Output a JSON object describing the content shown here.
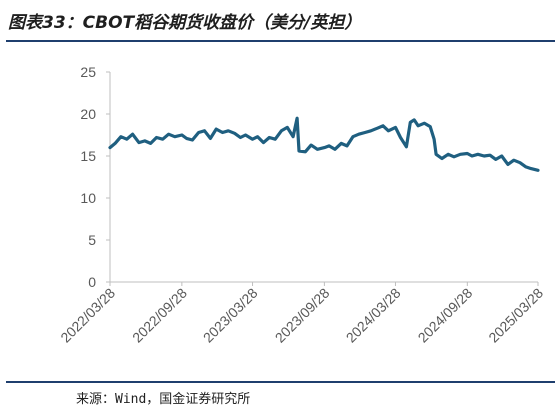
{
  "title": "图表33：CBOT稻谷期货收盘价（美分/英担）",
  "source": "来源：Wind，国金证券研究所",
  "colors": {
    "line": "#1f5f80",
    "rule": "#1f3f6e",
    "axis": "#bfbfbf"
  },
  "chart_data": {
    "type": "line",
    "title": "",
    "xlabel": "",
    "ylabel": "",
    "ylim": [
      0,
      25
    ],
    "yticks": [
      "0",
      "5",
      "10",
      "15",
      "20",
      "25"
    ],
    "xlim": [
      "2022-03-28",
      "2025-03-28"
    ],
    "xticks": [
      "2022/03/28",
      "2022/09/28",
      "2023/03/28",
      "2023/09/28",
      "2024/03/28",
      "2024/09/28",
      "2025/03/28"
    ],
    "grid": false,
    "legend": "none",
    "series": [
      {
        "name": "",
        "x": [
          "2022-03-28",
          "2022-04-10",
          "2022-04-25",
          "2022-05-10",
          "2022-05-25",
          "2022-06-10",
          "2022-06-25",
          "2022-07-10",
          "2022-07-25",
          "2022-08-10",
          "2022-08-25",
          "2022-09-10",
          "2022-09-28",
          "2022-10-10",
          "2022-10-25",
          "2022-11-10",
          "2022-11-25",
          "2022-12-10",
          "2022-12-25",
          "2023-01-10",
          "2023-01-25",
          "2023-02-10",
          "2023-02-25",
          "2023-03-10",
          "2023-03-28",
          "2023-04-10",
          "2023-04-25",
          "2023-05-10",
          "2023-05-25",
          "2023-06-10",
          "2023-06-25",
          "2023-07-10",
          "2023-07-20",
          "2023-07-25",
          "2023-08-10",
          "2023-08-25",
          "2023-09-10",
          "2023-09-28",
          "2023-10-10",
          "2023-10-25",
          "2023-11-10",
          "2023-11-25",
          "2023-12-10",
          "2023-12-25",
          "2024-01-10",
          "2024-01-25",
          "2024-02-10",
          "2024-02-25",
          "2024-03-10",
          "2024-03-28",
          "2024-04-10",
          "2024-04-25",
          "2024-05-05",
          "2024-05-15",
          "2024-05-25",
          "2024-06-10",
          "2024-06-25",
          "2024-07-05",
          "2024-07-10",
          "2024-07-25",
          "2024-08-10",
          "2024-08-25",
          "2024-09-10",
          "2024-09-28",
          "2024-10-10",
          "2024-10-25",
          "2024-11-10",
          "2024-11-25",
          "2024-12-10",
          "2024-12-25",
          "2025-01-10",
          "2025-01-25",
          "2025-02-10",
          "2025-02-25",
          "2025-03-10",
          "2025-03-28"
        ],
        "values": [
          16.0,
          16.5,
          17.3,
          17.0,
          17.6,
          16.6,
          16.8,
          16.5,
          17.2,
          17.0,
          17.6,
          17.3,
          17.5,
          17.1,
          16.9,
          17.8,
          18.0,
          17.1,
          18.2,
          17.8,
          18.0,
          17.7,
          17.2,
          17.5,
          17.0,
          17.3,
          16.6,
          17.2,
          17.0,
          18.0,
          18.4,
          17.3,
          19.5,
          15.6,
          15.5,
          16.3,
          15.8,
          16.0,
          16.2,
          15.8,
          16.5,
          16.2,
          17.3,
          17.6,
          17.8,
          18.0,
          18.3,
          18.6,
          18.0,
          18.4,
          17.2,
          16.1,
          19.0,
          19.3,
          18.6,
          18.9,
          18.5,
          17.0,
          15.2,
          14.7,
          15.2,
          14.9,
          15.2,
          15.3,
          15.0,
          15.2,
          15.0,
          15.1,
          14.6,
          15.0,
          14.0,
          14.5,
          14.2,
          13.7,
          13.5,
          13.3
        ]
      }
    ]
  }
}
